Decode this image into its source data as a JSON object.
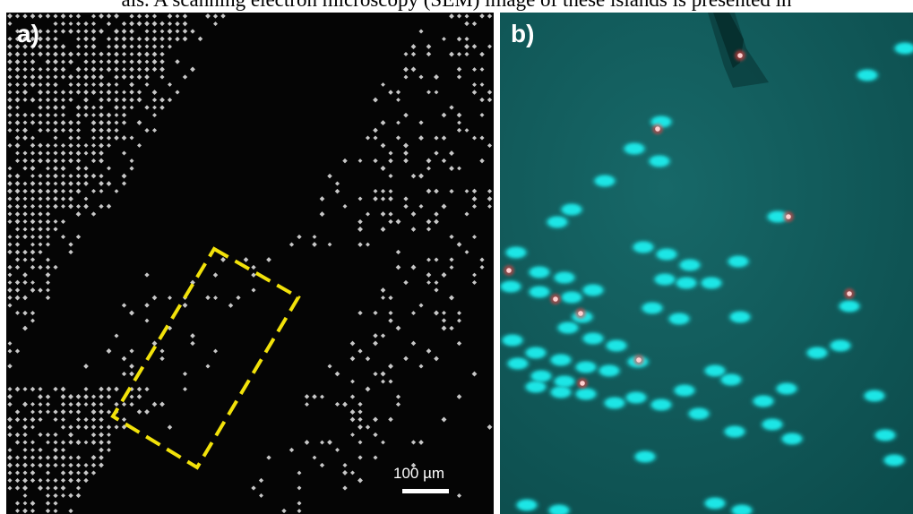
{
  "caption": "als. A scanning electron microscopy (SEM) image of these islands is presented in",
  "panel_a": {
    "label": "a)",
    "scalebar_label": "100 µm",
    "colors": {
      "background": "#050505",
      "islands": "#c8c8c8",
      "highlight_box": "#f2e20a"
    }
  },
  "panel_b": {
    "label": "b)",
    "colors": {
      "background": "#0f5858",
      "islands": "#1fe6e6",
      "fluorescent_spots": "#ff4040"
    }
  }
}
